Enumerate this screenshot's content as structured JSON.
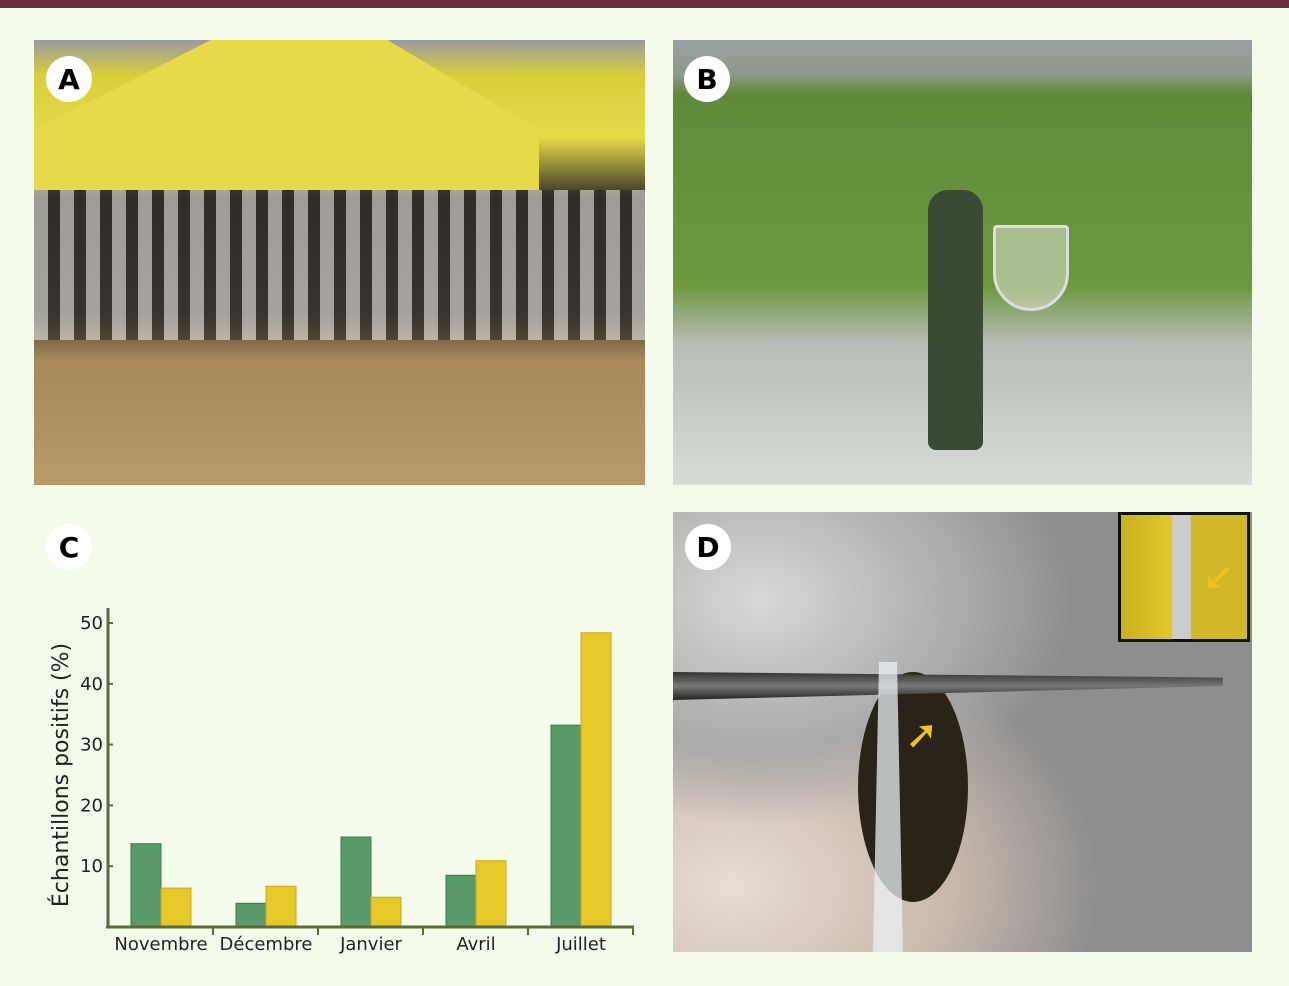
{
  "panels": {
    "a": "A",
    "b": "B",
    "c": "C",
    "d": "D"
  },
  "colors": {
    "top_bar": "#6b2e3a",
    "series_1": "#5a9a6a",
    "series_2": "#e6c829",
    "axis": "#5a6a3a"
  },
  "icons": {
    "inset_arrow": "arrow-up-left-icon",
    "main_arrow": "arrow-up-left-icon"
  },
  "chart_data": {
    "type": "bar",
    "ylabel": "Échantillons positifs (%)",
    "xlabel": "",
    "categories": [
      "Novembre",
      "Décembre",
      "Janvier",
      "Avril",
      "Juillet"
    ],
    "yticks": [
      "10",
      "20",
      "30",
      "40",
      "50"
    ],
    "ylim": [
      0,
      50
    ],
    "series": [
      {
        "color": "#5a9a6a",
        "values": [
          13.7,
          3.9,
          14.8,
          8.5,
          33.2
        ]
      },
      {
        "color": "#e6c829",
        "values": [
          6.4,
          6.7,
          4.9,
          10.9,
          48.4
        ]
      }
    ],
    "grid": false,
    "legend": "none"
  }
}
